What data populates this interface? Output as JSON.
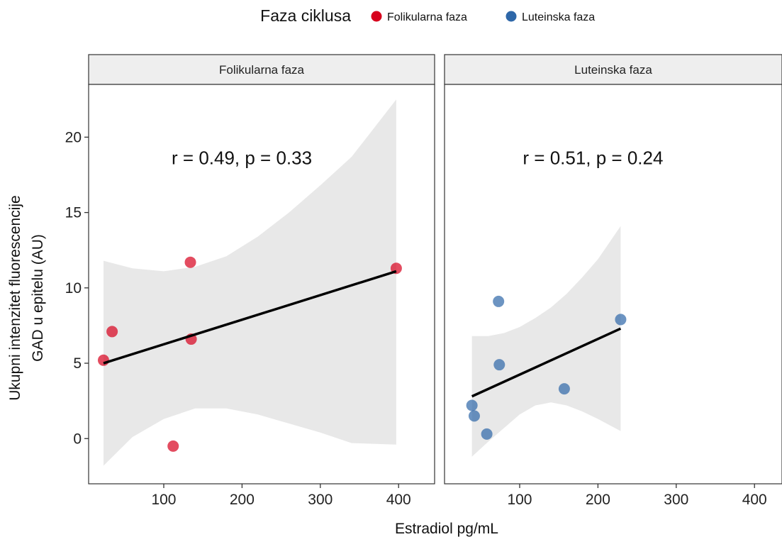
{
  "chart_data": {
    "type": "scatter",
    "legend": {
      "title": "Faza ciklusa",
      "position": "top",
      "entries": [
        {
          "label": "Folikularna faza",
          "color": "#d7001c"
        },
        {
          "label": "Luteinska faza",
          "color": "#2e67a8"
        }
      ]
    },
    "xlabel": "Estradiol pg/mL",
    "ylabel_lines": [
      "Ukupni intenzitet fluorescencije",
      "GAD u epitelu (AU)"
    ],
    "xlim": [
      4,
      446
    ],
    "ylim": [
      -3,
      23.5
    ],
    "xticks": [
      100,
      200,
      300,
      400
    ],
    "yticks": [
      0,
      5,
      10,
      15,
      20
    ],
    "grid": false,
    "panels": [
      {
        "strip": "Folikularna faza",
        "color": "#d7001c",
        "annotation": "r = 0.49, p = 0.33",
        "annotation_pos": [
          110,
          18.2
        ],
        "points": [
          {
            "x": 23,
            "y": 5.2
          },
          {
            "x": 34,
            "y": 7.1
          },
          {
            "x": 112,
            "y": -0.5
          },
          {
            "x": 134,
            "y": 11.7
          },
          {
            "x": 135,
            "y": 6.6
          },
          {
            "x": 397,
            "y": 11.3
          }
        ],
        "fit": {
          "x": [
            23,
            397
          ],
          "y": [
            5.0,
            11.1
          ]
        },
        "band": {
          "x": [
            23,
            60,
            100,
            140,
            180,
            220,
            260,
            300,
            340,
            397
          ],
          "upper": [
            11.8,
            11.3,
            11.1,
            11.4,
            12.1,
            13.4,
            15.0,
            16.8,
            18.7,
            22.5
          ],
          "lower": [
            -1.8,
            0.1,
            1.3,
            2.0,
            2.0,
            1.6,
            1.0,
            0.4,
            -0.3,
            -0.4
          ]
        }
      },
      {
        "strip": "Luteinska faza",
        "color": "#2e67a8",
        "annotation": "r = 0.51, p = 0.24",
        "annotation_pos": [
          104,
          18.2
        ],
        "points": [
          {
            "x": 39,
            "y": 2.2
          },
          {
            "x": 42,
            "y": 1.5
          },
          {
            "x": 58,
            "y": 0.3
          },
          {
            "x": 73,
            "y": 9.1
          },
          {
            "x": 74,
            "y": 4.9
          },
          {
            "x": 157,
            "y": 3.3
          },
          {
            "x": 229,
            "y": 7.9
          }
        ],
        "fit": {
          "x": [
            39,
            229
          ],
          "y": [
            2.8,
            7.3
          ]
        },
        "band": {
          "x": [
            39,
            60,
            80,
            100,
            120,
            140,
            160,
            180,
            200,
            229
          ],
          "upper": [
            6.8,
            6.8,
            7.0,
            7.4,
            8.0,
            8.7,
            9.6,
            10.7,
            11.9,
            14.1
          ],
          "lower": [
            -1.2,
            -0.2,
            0.7,
            1.6,
            2.2,
            2.4,
            2.2,
            1.8,
            1.3,
            0.5
          ]
        }
      }
    ]
  }
}
